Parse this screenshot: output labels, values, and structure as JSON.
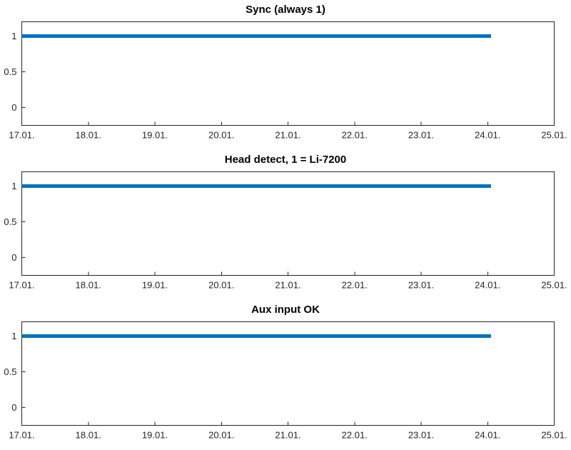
{
  "figure": {
    "background": "#ffffff",
    "axis_color": "#262626",
    "text_color": "#262626"
  },
  "chart_data": [
    {
      "type": "line",
      "title": "Sync (always 1)",
      "xlabel": "",
      "ylabel": "",
      "grid": false,
      "legend": null,
      "xlim": [
        17,
        25
      ],
      "ylim": [
        -0.25,
        1.2
      ],
      "x_tick_values": [
        17,
        18,
        19,
        20,
        21,
        22,
        23,
        24,
        25
      ],
      "x_tick_labels": [
        "17.01.",
        "18.01.",
        "19.01.",
        "20.01.",
        "21.01.",
        "22.01.",
        "23.01.",
        "24.01.",
        "25.01."
      ],
      "y_tick_values": [
        0,
        0.5,
        1
      ],
      "y_tick_labels": [
        "0",
        "0.5",
        "1"
      ],
      "axis_color": "#262626",
      "series": [
        {
          "name": "sync",
          "color": "#0072BD",
          "linewidth": 5,
          "x": [
            17,
            24.05
          ],
          "y": [
            1,
            1
          ]
        }
      ]
    },
    {
      "type": "line",
      "title": "Head detect, 1 = Li-7200",
      "xlabel": "",
      "ylabel": "",
      "grid": false,
      "legend": null,
      "xlim": [
        17,
        25
      ],
      "ylim": [
        -0.25,
        1.2
      ],
      "x_tick_values": [
        17,
        18,
        19,
        20,
        21,
        22,
        23,
        24,
        25
      ],
      "x_tick_labels": [
        "17.01.",
        "18.01.",
        "19.01.",
        "20.01.",
        "21.01.",
        "22.01.",
        "23.01.",
        "24.01.",
        "25.01."
      ],
      "y_tick_values": [
        0,
        0.5,
        1
      ],
      "y_tick_labels": [
        "0",
        "0.5",
        "1"
      ],
      "axis_color": "#262626",
      "series": [
        {
          "name": "head-detect",
          "color": "#0072BD",
          "linewidth": 5,
          "x": [
            17,
            24.05
          ],
          "y": [
            1,
            1
          ]
        }
      ]
    },
    {
      "type": "line",
      "title": "Aux input OK",
      "xlabel": "",
      "ylabel": "",
      "grid": false,
      "legend": null,
      "xlim": [
        17,
        25
      ],
      "ylim": [
        -0.25,
        1.2
      ],
      "x_tick_values": [
        17,
        18,
        19,
        20,
        21,
        22,
        23,
        24,
        25
      ],
      "x_tick_labels": [
        "17.01.",
        "18.01.",
        "19.01.",
        "20.01.",
        "21.01.",
        "22.01.",
        "23.01.",
        "24.01.",
        "25.01."
      ],
      "y_tick_values": [
        0,
        0.5,
        1
      ],
      "y_tick_labels": [
        "0",
        "0.5",
        "1"
      ],
      "axis_color": "#262626",
      "series": [
        {
          "name": "aux-input-ok",
          "color": "#0072BD",
          "linewidth": 5,
          "x": [
            17,
            24.05
          ],
          "y": [
            1,
            1
          ]
        }
      ]
    }
  ]
}
